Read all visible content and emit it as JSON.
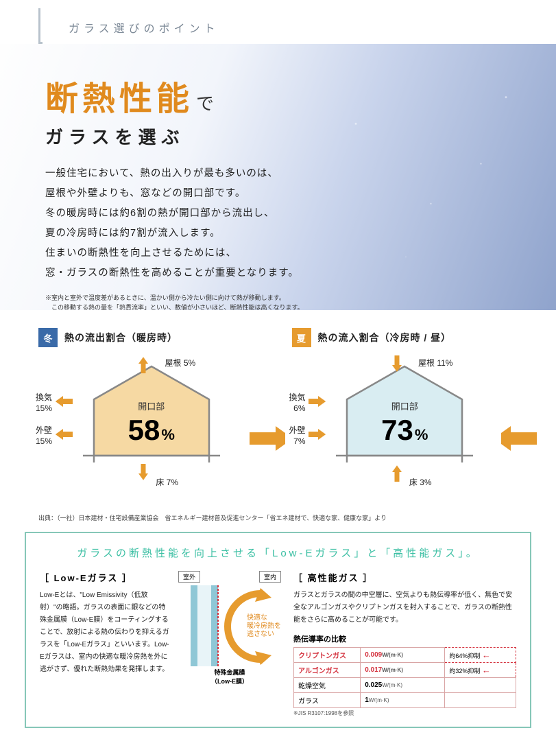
{
  "header": {
    "text": "ガラス選びのポイント"
  },
  "hero": {
    "title_main": "断熱性能",
    "title_main_color": "#e08a1e",
    "title_sub": "で",
    "subtitle": "ガラスを選ぶ",
    "body_lines": [
      "一般住宅において、熱の出入りが最も多いのは、",
      "屋根や外壁よりも、窓などの開口部です。",
      "冬の暖房時には約6割の熱が開口部から流出し、",
      "夏の冷房時には約7割が流入します。",
      "住まいの断熱性を向上させるためには、",
      "窓・ガラスの断熱性を高めることが重要となります。"
    ],
    "footnote_lines": [
      "※室内と室外で温度差があるときに、温かい側から冷たい側に向けて熱が移動します。",
      "　この移動する熱の量を「熱貫流率」といい、数値が小さいほど、断熱性能は高くなります。"
    ]
  },
  "diagrams": {
    "winter": {
      "tag": "冬",
      "tag_color": "#3a6aa8",
      "title": "熱の流出割合（暖房時）",
      "house_fill": "#f6d9a3",
      "center_label": "開口部",
      "center_value": "58",
      "center_unit": "%",
      "roof": "屋根 5%",
      "vent": "換気\n15%",
      "wall": "外壁\n15%",
      "floor": "床 7%",
      "arrow_color": "#e69b2e"
    },
    "summer": {
      "tag": "夏",
      "tag_color": "#e69b2e",
      "title": "熱の流入割合（冷房時 / 昼）",
      "house_fill": "#d9edf2",
      "center_label": "開口部",
      "center_value": "73",
      "center_unit": "%",
      "roof": "屋根 11%",
      "vent": "換気\n6%",
      "wall": "外壁\n7%",
      "floor": "床 3%",
      "arrow_color": "#e69b2e"
    },
    "source": "出典：（一社）日本建材・住宅設備産業協会　省エネルギー建材普及促進センター「省エネ建材で、快適な家、健康な家」より"
  },
  "info_box": {
    "title": "ガラスの断熱性能を向上させる「Low-Eガラス」と「高性能ガス」。",
    "lowE": {
      "head": "［ Low-Eガラス ］",
      "text": "Low-Eとは、\"Low Emissivity（低放射）\"の略語。ガラスの表面に銀などの特殊金属膜（Low-E膜）をコーティングすることで、放射による熱の伝わりを抑えるガラスを「Low-Eガラス」といいます。Low-Eガラスは、室内の快適な暖冷房熱を外に逃がさず、優れた断熱効果を発揮します。",
      "glass_outside": "室外",
      "glass_inside": "室内",
      "inside_text": "快適な\n暖冷房熱を\n逃さない",
      "metal_label": "特殊金属膜\n（Low-E膜）",
      "arc_color": "#e69b2e",
      "glass_color": "#8fc7d6"
    },
    "gas": {
      "head": "［ 高性能ガス ］",
      "text": "ガラスとガラスの間の中空層に、空気よりも熱伝導率が低く、無色で安全なアルゴンガスやクリプトンガスを封入することで、ガラスの断熱性能をさらに高めることが可能です。",
      "table_title": "熱伝導率の比較",
      "rows": [
        {
          "name": "クリプトンガス",
          "val": "0.009",
          "unit": "W/(m·K)",
          "note": "約64%抑制",
          "highlight": true
        },
        {
          "name": "アルゴンガス",
          "val": "0.017",
          "unit": "W/(m·K)",
          "note": "約32%抑制",
          "highlight": true
        },
        {
          "name": "乾燥空気",
          "val": "0.025",
          "unit": "W/(m·K)",
          "note": "",
          "highlight": false
        },
        {
          "name": "ガラス",
          "val": "1",
          "unit": "W/(m·K)",
          "note": "",
          "highlight": false
        }
      ],
      "tiny": "※JIS R3107:1998を参照"
    }
  }
}
